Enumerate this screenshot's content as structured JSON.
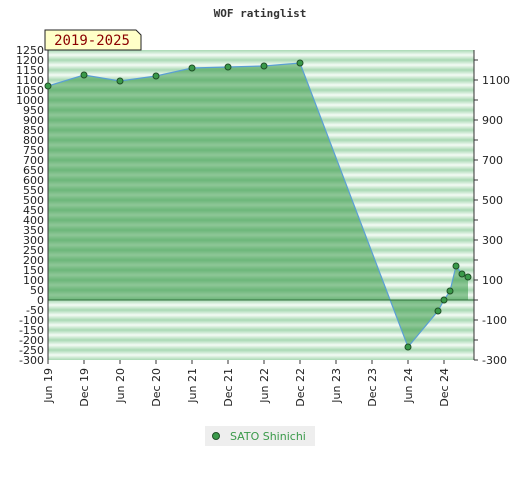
{
  "chart_data": {
    "type": "area",
    "title": "WOF ratinglist",
    "period_label": "2019-2025",
    "x_ticks": [
      "Jun 19",
      "Dec 19",
      "Jun 20",
      "Dec 20",
      "Jun 21",
      "Dec 21",
      "Jun 22",
      "Dec 22",
      "Jun 23",
      "Dec 23",
      "Jun 24",
      "Dec 24"
    ],
    "y_left_ticks": [
      "1250",
      "1200",
      "1150",
      "1100",
      "1050",
      "1000",
      "950",
      "900",
      "850",
      "800",
      "750",
      "700",
      "650",
      "600",
      "550",
      "500",
      "450",
      "400",
      "350",
      "300",
      "250",
      "200",
      "150",
      "100",
      "50",
      "0",
      "-50",
      "-100",
      "-150",
      "-200",
      "-250",
      "-300"
    ],
    "y_right_ticks": [
      "1100",
      "900",
      "700",
      "500",
      "300",
      "100",
      "-100",
      "-300"
    ],
    "ylim": [
      -300,
      1250
    ],
    "grid": true,
    "legend_position": "bottom-center",
    "series": [
      {
        "name": "SATO Shinichi",
        "color": "#3a9a4a",
        "points": [
          {
            "x": "2019-06",
            "y": 1070
          },
          {
            "x": "2019-12",
            "y": 1125
          },
          {
            "x": "2020-06",
            "y": 1095
          },
          {
            "x": "2020-12",
            "y": 1120
          },
          {
            "x": "2021-06",
            "y": 1160
          },
          {
            "x": "2021-12",
            "y": 1165
          },
          {
            "x": "2022-06",
            "y": 1170
          },
          {
            "x": "2022-12",
            "y": 1185
          },
          {
            "x": "2024-06",
            "y": -235
          },
          {
            "x": "2024-11",
            "y": -55
          },
          {
            "x": "2024-12",
            "y": 0
          },
          {
            "x": "2025-01",
            "y": 45
          },
          {
            "x": "2025-02",
            "y": 170
          },
          {
            "x": "2025-03",
            "y": 130
          },
          {
            "x": "2025-04",
            "y": 115
          }
        ]
      }
    ]
  }
}
